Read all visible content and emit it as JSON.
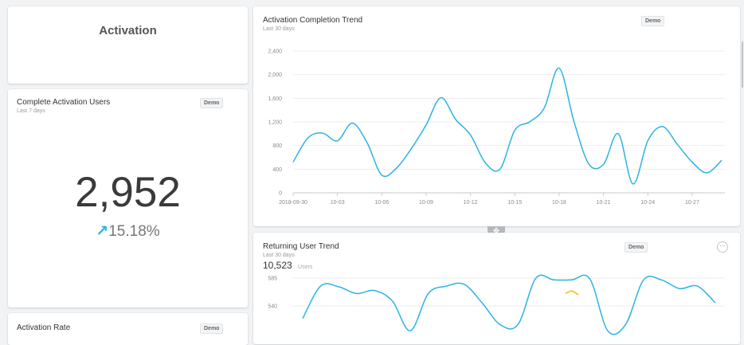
{
  "activation_card": {
    "heading": "Activation"
  },
  "complete_users": {
    "title": "Complete Activation Users",
    "subtitle": "Last 7 days",
    "badge": "Demo",
    "value": "2,952",
    "change_arrow": "↗",
    "change": "15.18%",
    "trend_icon": "arrow-up-right-icon",
    "accent_color": "#2bb3e6"
  },
  "activation_rate": {
    "title": "Activation Rate",
    "badge": "Demo"
  },
  "completion_trend": {
    "title": "Activation Completion Trend",
    "subtitle": "Last 30 days",
    "badge": "Demo"
  },
  "returning_trend": {
    "title": "Returning User Trend",
    "subtitle": "Last 30 days",
    "badge": "Demo",
    "value": "10,523",
    "unit": "Users",
    "more_icon": "ellipsis-icon"
  },
  "drag_handle_icon": "move-icon",
  "chart_data": [
    {
      "type": "line",
      "title": "Activation Completion Trend",
      "x_ticks": [
        "2018-09-30",
        "10-03",
        "10-06",
        "10-09",
        "10-12",
        "10-15",
        "10-18",
        "10-21",
        "10-24",
        "10-27"
      ],
      "y_ticks": [
        "0",
        "400",
        "800",
        "1,200",
        "1,600",
        "2,000",
        "2,400"
      ],
      "ylim": [
        0,
        2400
      ],
      "grid": true,
      "color": "#2bb3e6",
      "series": [
        {
          "x": [
            "2018-09-30",
            "2018-10-01",
            "2018-10-02",
            "2018-10-03",
            "2018-10-04",
            "2018-10-05",
            "2018-10-06",
            "2018-10-07",
            "2018-10-08",
            "2018-10-09",
            "2018-10-10",
            "2018-10-11",
            "2018-10-12",
            "2018-10-13",
            "2018-10-14",
            "2018-10-15",
            "2018-10-16",
            "2018-10-17",
            "2018-10-18",
            "2018-10-19",
            "2018-10-20",
            "2018-10-21",
            "2018-10-22",
            "2018-10-23",
            "2018-10-24",
            "2018-10-25",
            "2018-10-26",
            "2018-10-27",
            "2018-10-28",
            "2018-10-29"
          ],
          "values": [
            520,
            930,
            1010,
            880,
            1180,
            850,
            300,
            420,
            750,
            1150,
            1610,
            1240,
            980,
            510,
            400,
            1060,
            1200,
            1440,
            2110,
            1210,
            490,
            480,
            1000,
            150,
            880,
            1120,
            820,
            520,
            340,
            550
          ]
        }
      ]
    },
    {
      "type": "line",
      "title": "Returning User Trend",
      "y_ticks": [
        "540",
        "585"
      ],
      "grid": true,
      "note": "chart partially cut off at bottom of screenshot",
      "series": [
        {
          "color": "#2bb3e6",
          "values": [
            520,
            572,
            571,
            560,
            565,
            548,
            500,
            560,
            572,
            575,
            545,
            510,
            510,
            585,
            582,
            582,
            584,
            500,
            510,
            582,
            582,
            568,
            572,
            545
          ]
        },
        {
          "color": "#f5b800",
          "values": [
            560,
            564,
            558
          ]
        }
      ]
    }
  ]
}
